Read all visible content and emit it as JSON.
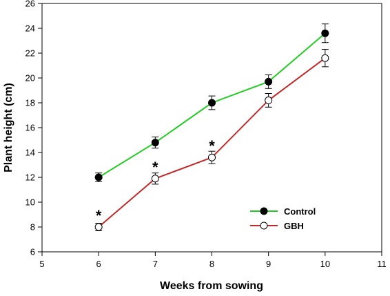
{
  "chart_data": {
    "type": "line",
    "xlabel": "Weeks from sowing",
    "ylabel": "Plant height (cm)",
    "xlim": [
      5,
      11
    ],
    "ylim": [
      6,
      26
    ],
    "xticks": [
      5,
      6,
      7,
      8,
      9,
      10,
      11
    ],
    "yticks": [
      6,
      8,
      10,
      12,
      14,
      16,
      18,
      20,
      22,
      24,
      26
    ],
    "grid": false,
    "legend_position": "bottom-right",
    "x": [
      6,
      7,
      8,
      9,
      10
    ],
    "series": [
      {
        "name": "Control",
        "color": "#22cc22",
        "marker": "filled-circle",
        "values": [
          12.0,
          14.8,
          18.0,
          19.7,
          23.6
        ],
        "errors": [
          0.35,
          0.45,
          0.55,
          0.55,
          0.75
        ]
      },
      {
        "name": "GBH",
        "color": "#c0282a",
        "marker": "open-circle",
        "values": [
          8.0,
          11.9,
          13.6,
          18.2,
          21.6
        ],
        "errors": [
          0.3,
          0.45,
          0.5,
          0.55,
          0.7
        ]
      }
    ],
    "annotations": [
      {
        "text": "*",
        "x": 6,
        "y": 9.0
      },
      {
        "text": "*",
        "x": 7,
        "y": 12.9
      },
      {
        "text": "*",
        "x": 8,
        "y": 14.6
      }
    ]
  }
}
